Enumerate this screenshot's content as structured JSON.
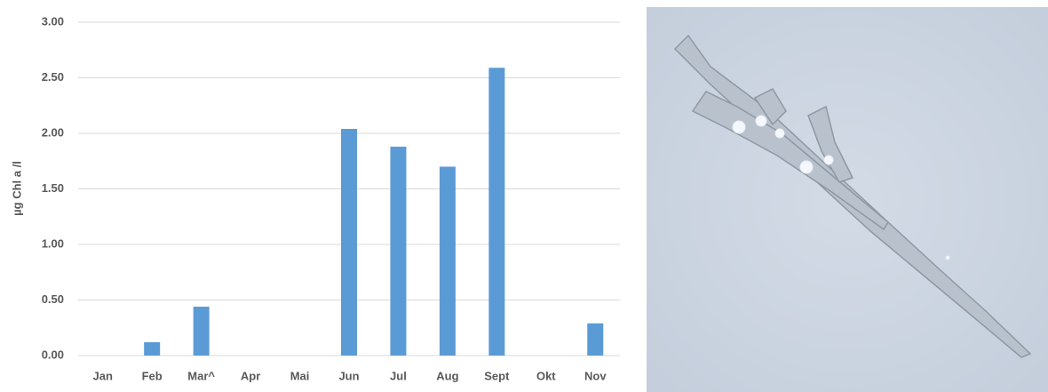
{
  "chart_data": {
    "type": "bar",
    "y_label": "µg Chl a /l",
    "categories": [
      "Jan",
      "Feb",
      "Mar^",
      "Apr",
      "Mai",
      "Jun",
      "Jul",
      "Aug",
      "Sept",
      "Okt",
      "Nov"
    ],
    "values": [
      null,
      0.12,
      0.44,
      null,
      null,
      2.04,
      1.88,
      1.7,
      2.59,
      null,
      0.29
    ],
    "color": "#5b9bd5",
    "ylim": [
      0,
      3
    ],
    "yticks": [
      {
        "value": 0,
        "label": "0.00"
      },
      {
        "value": 0.5,
        "label": "0.50"
      },
      {
        "value": 1,
        "label": "1.00"
      },
      {
        "value": 1.5,
        "label": "1.50"
      },
      {
        "value": 2,
        "label": "2.00"
      },
      {
        "value": 2.5,
        "label": "2.50"
      },
      {
        "value": 3,
        "label": "3.00"
      }
    ],
    "grid": true
  }
}
